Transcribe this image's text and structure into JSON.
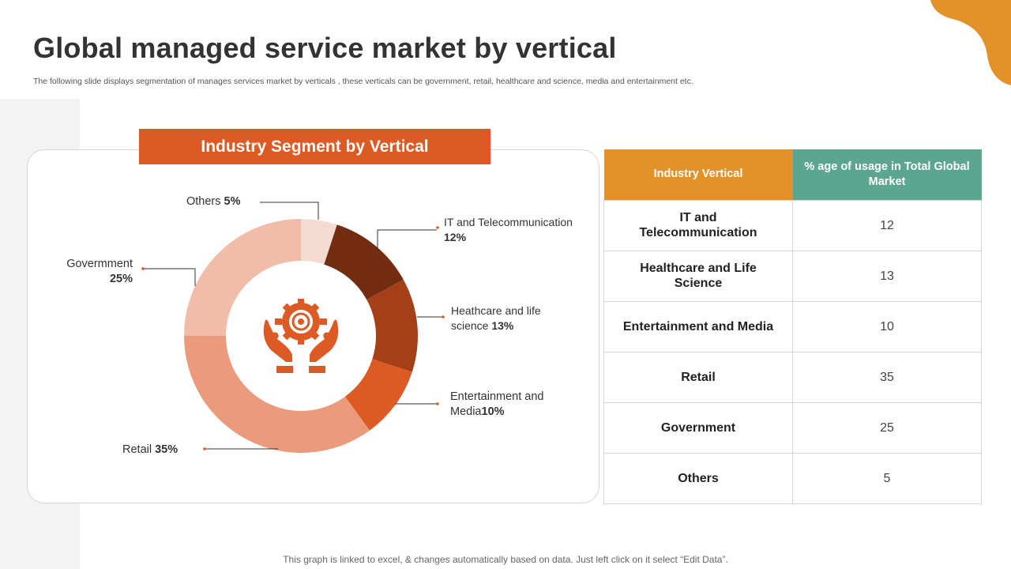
{
  "page": {
    "title": "Global managed service market by vertical",
    "subtitle": "The following slide displays segmentation of manages services market by verticals , these verticals can be government, retail, healthcare and science, media and entertainment etc.",
    "footer": "This graph is linked to excel, & changes automatically based on data. Just left click on it select “Edit Data”."
  },
  "chart_data": {
    "type": "pie",
    "variant": "donut",
    "title": "Industry Segment by Vertical",
    "center_icon": "gear-in-hands-icon",
    "slices": [
      {
        "name": "Others",
        "label": "Others",
        "value": 5,
        "pct": "5%",
        "color": "#f4dbd2"
      },
      {
        "name": "IT and Telecommunication",
        "label": "IT and Telecommunication",
        "value": 12,
        "pct": "12%",
        "color": "#722c10"
      },
      {
        "name": "Healthcare and Life Science",
        "label": "Heathcare and life science",
        "value": 13,
        "pct": "13%",
        "color": "#a43f18"
      },
      {
        "name": "Entertainment and Media",
        "label": "Entertainment and Media",
        "value": 10,
        "pct": "10%",
        "color": "#dd5a25"
      },
      {
        "name": "Retail",
        "label": "Retail",
        "value": 35,
        "pct": "35%",
        "color": "#eb9b7c"
      },
      {
        "name": "Government",
        "label": "Govermment",
        "value": 25,
        "pct": "25%",
        "color": "#f2bda8"
      }
    ]
  },
  "table": {
    "headers": [
      "Industry Vertical",
      "% age of usage in Total Global Market"
    ],
    "header_colors": [
      "#e3922a",
      "#5ca690"
    ],
    "rows": [
      {
        "vertical": "IT and Telecommunication",
        "value": "12"
      },
      {
        "vertical": "Healthcare and Life Science",
        "value": "13"
      },
      {
        "vertical": "Entertainment and Media",
        "value": "10"
      },
      {
        "vertical": "Retail",
        "value": "35"
      },
      {
        "vertical": "Government",
        "value": "25"
      },
      {
        "vertical": "Others",
        "value": "5"
      }
    ]
  },
  "colors": {
    "accent": "#dd5a25",
    "blob": "#e3922a"
  }
}
